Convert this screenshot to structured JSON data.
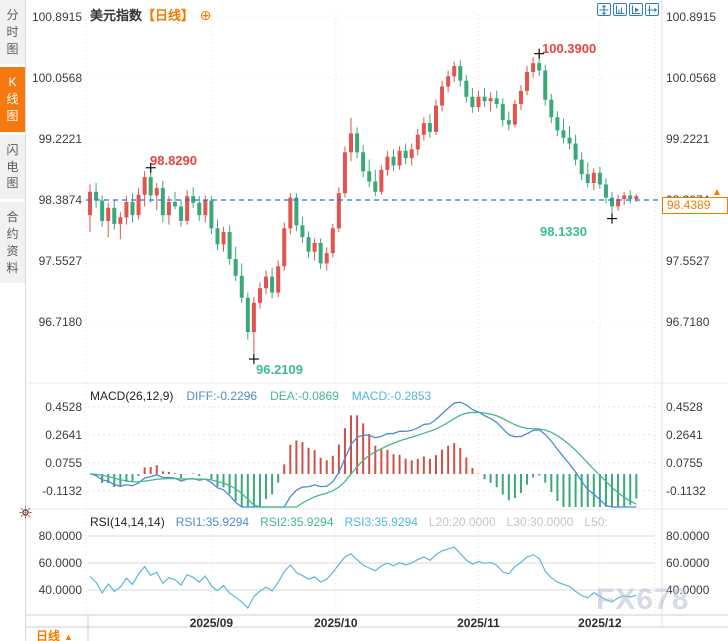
{
  "sidebar": {
    "tabs": [
      {
        "label": "分时图",
        "active": false
      },
      {
        "label": "K线图",
        "active": true
      },
      {
        "label": "闪电图",
        "active": false
      },
      {
        "label": "合约资料",
        "active": false
      }
    ]
  },
  "header": {
    "title": "美元指数",
    "period_tag": "【日线】",
    "add_icon": "⊕"
  },
  "toolbar": {
    "icons": [
      "pan-crosshair",
      "axis-zoom",
      "axis-play",
      "axis-shift"
    ]
  },
  "main_chart": {
    "y_axis_labels": [
      "100.8915",
      "100.0568",
      "99.2221",
      "98.3874",
      "97.5527",
      "96.7180"
    ],
    "annotations": {
      "high_aug": "98.8290",
      "peak_nov": "100.3900",
      "low_dec": "98.1330",
      "low_sep": "96.2109"
    },
    "current_price": "98.4389",
    "price_arrow": "▲"
  },
  "macd_panel": {
    "title": "MACD(26,12,9)",
    "diff_label": "DIFF:-0.2296",
    "dea_label": "DEA:-0.0869",
    "macd_label": "MACD:-0.2853",
    "y_labels": [
      "0.4528",
      "0.2641",
      "0.0755",
      "-0.1132"
    ]
  },
  "rsi_panel": {
    "title": "RSI(14,14,14)",
    "rsi1_label": "RSI1:35.9294",
    "rsi2_label": "RSI2:35.9294",
    "rsi3_label": "RSI3:35.9294",
    "l20_label": "L20:20.0000",
    "l30_label": "L30:30.0000",
    "l50_label": "L50:",
    "y_labels": [
      "80.0000",
      "60.0000",
      "40.0000"
    ]
  },
  "x_axis": {
    "labels": [
      "2025/09",
      "2025/10",
      "2025/11",
      "2025/12"
    ]
  },
  "footer": {
    "period_button": "日线",
    "arrow": "▲"
  },
  "watermark": "FX678",
  "colors": {
    "up": "#e2544e",
    "down": "#3aa878",
    "accent_orange": "#f57b00",
    "prev_close_line": "#2478d8",
    "diff_line": "#4d8bd0",
    "dea_line": "#46b88a",
    "rsi_line": "#59b7d8",
    "annotation_red": "#e8433f",
    "annotation_green": "#3bbd94"
  },
  "chart_data": {
    "type": "candlestick",
    "title": "美元指数 日线 (US Dollar Index, Daily)",
    "y_range": [
      96.718,
      100.8915
    ],
    "y_gridline_values": [
      100.8915,
      100.0568,
      99.2221,
      98.3874,
      97.5527,
      96.718
    ],
    "x_tick_labels": [
      "2025/09",
      "2025/10",
      "2025/11",
      "2025/12"
    ],
    "x_tick_indices": [
      20,
      40.5,
      64,
      84
    ],
    "prev_close": 98.3874,
    "last_price": 98.4389,
    "legend_convention": "red=up, green=down",
    "candles_ohlc": [
      [
        98.18,
        98.6,
        97.95,
        98.5
      ],
      [
        98.5,
        98.62,
        98.28,
        98.38
      ],
      [
        98.38,
        98.45,
        98.02,
        98.1
      ],
      [
        98.1,
        98.35,
        97.88,
        98.28
      ],
      [
        98.28,
        98.38,
        97.98,
        98.06
      ],
      [
        98.06,
        98.22,
        97.85,
        98.15
      ],
      [
        98.15,
        98.45,
        98.05,
        98.36
      ],
      [
        98.36,
        98.48,
        98.08,
        98.18
      ],
      [
        98.18,
        98.55,
        98.12,
        98.46
      ],
      [
        98.46,
        98.78,
        98.3,
        98.7
      ],
      [
        98.7,
        98.829,
        98.35,
        98.45
      ],
      [
        98.45,
        98.62,
        98.25,
        98.55
      ],
      [
        98.55,
        98.65,
        98.08,
        98.18
      ],
      [
        98.18,
        98.44,
        98.05,
        98.36
      ],
      [
        98.36,
        98.5,
        98.26,
        98.3
      ],
      [
        98.3,
        98.38,
        98.02,
        98.1
      ],
      [
        98.1,
        98.52,
        98.05,
        98.44
      ],
      [
        98.44,
        98.56,
        98.28,
        98.35
      ],
      [
        98.35,
        98.44,
        98.1,
        98.18
      ],
      [
        98.18,
        98.45,
        98.08,
        98.38
      ],
      [
        98.38,
        98.44,
        97.92,
        98.0
      ],
      [
        98.0,
        98.12,
        97.7,
        97.78
      ],
      [
        97.78,
        98.02,
        97.68,
        97.95
      ],
      [
        97.95,
        98.04,
        97.5,
        97.58
      ],
      [
        97.58,
        97.75,
        97.28,
        97.35
      ],
      [
        97.35,
        97.52,
        96.98,
        97.05
      ],
      [
        97.05,
        97.12,
        96.48,
        96.58
      ],
      [
        96.58,
        97.06,
        96.2109,
        96.98
      ],
      [
        96.98,
        97.26,
        96.9,
        97.18
      ],
      [
        97.18,
        97.42,
        97.1,
        97.34
      ],
      [
        97.34,
        97.46,
        97.04,
        97.12
      ],
      [
        97.12,
        97.56,
        97.06,
        97.48
      ],
      [
        97.48,
        98.08,
        97.42,
        98.0
      ],
      [
        98.0,
        98.48,
        97.92,
        98.42
      ],
      [
        98.42,
        98.48,
        97.96,
        98.04
      ],
      [
        98.04,
        98.16,
        97.8,
        97.88
      ],
      [
        97.88,
        97.96,
        97.6,
        97.68
      ],
      [
        97.68,
        97.86,
        97.56,
        97.8
      ],
      [
        97.8,
        97.86,
        97.44,
        97.52
      ],
      [
        97.52,
        97.74,
        97.42,
        97.66
      ],
      [
        97.66,
        98.06,
        97.6,
        98.0
      ],
      [
        98.0,
        98.56,
        97.95,
        98.48
      ],
      [
        98.48,
        99.12,
        98.42,
        99.04
      ],
      [
        99.04,
        99.51,
        98.92,
        99.3
      ],
      [
        99.3,
        99.38,
        98.96,
        99.04
      ],
      [
        99.04,
        99.14,
        98.7,
        98.78
      ],
      [
        98.78,
        98.94,
        98.56,
        98.64
      ],
      [
        98.64,
        98.8,
        98.44,
        98.5
      ],
      [
        98.5,
        98.86,
        98.46,
        98.8
      ],
      [
        98.8,
        99.06,
        98.72,
        98.98
      ],
      [
        98.98,
        99.08,
        98.78,
        98.86
      ],
      [
        98.86,
        99.12,
        98.8,
        99.06
      ],
      [
        99.06,
        99.16,
        98.88,
        98.96
      ],
      [
        98.96,
        99.16,
        98.86,
        99.08
      ],
      [
        99.08,
        99.36,
        99.0,
        99.28
      ],
      [
        99.28,
        99.52,
        99.2,
        99.44
      ],
      [
        99.44,
        99.56,
        99.24,
        99.32
      ],
      [
        99.32,
        99.76,
        99.28,
        99.68
      ],
      [
        99.68,
        100.02,
        99.6,
        99.94
      ],
      [
        99.94,
        100.16,
        99.86,
        100.08
      ],
      [
        100.08,
        100.28,
        100.0,
        100.22
      ],
      [
        100.22,
        100.3,
        99.94,
        100.02
      ],
      [
        100.02,
        100.1,
        99.72,
        99.8
      ],
      [
        99.8,
        99.92,
        99.58,
        99.66
      ],
      [
        99.66,
        99.88,
        99.6,
        99.8
      ],
      [
        99.8,
        99.92,
        99.66,
        99.74
      ],
      [
        99.74,
        99.86,
        99.6,
        99.78
      ],
      [
        99.78,
        99.88,
        99.64,
        99.7
      ],
      [
        99.7,
        99.78,
        99.4,
        99.48
      ],
      [
        99.48,
        99.6,
        99.34,
        99.42
      ],
      [
        99.42,
        99.76,
        99.38,
        99.7
      ],
      [
        99.7,
        99.96,
        99.62,
        99.88
      ],
      [
        99.88,
        100.22,
        99.82,
        100.14
      ],
      [
        100.14,
        100.34,
        100.06,
        100.26
      ],
      [
        100.26,
        100.39,
        100.08,
        100.16
      ],
      [
        100.16,
        100.24,
        99.68,
        99.76
      ],
      [
        99.76,
        99.84,
        99.44,
        99.52
      ],
      [
        99.52,
        99.6,
        99.26,
        99.34
      ],
      [
        99.34,
        99.5,
        99.16,
        99.24
      ],
      [
        99.24,
        99.4,
        99.08,
        99.16
      ],
      [
        99.16,
        99.28,
        98.86,
        98.94
      ],
      [
        98.94,
        99.04,
        98.66,
        98.74
      ],
      [
        98.74,
        98.9,
        98.56,
        98.62
      ],
      [
        98.62,
        98.82,
        98.52,
        98.76
      ],
      [
        98.76,
        98.84,
        98.54,
        98.6
      ],
      [
        98.6,
        98.68,
        98.34,
        98.42
      ],
      [
        98.42,
        98.5,
        98.133,
        98.3
      ],
      [
        98.3,
        98.46,
        98.24,
        98.4
      ],
      [
        98.4,
        98.5,
        98.32,
        98.45
      ],
      [
        98.45,
        98.52,
        98.34,
        98.4
      ],
      [
        98.4,
        98.47,
        98.36,
        98.4389
      ]
    ],
    "markers": [
      {
        "index": 10,
        "price": 98.829
      },
      {
        "index": 27,
        "price": 96.2109
      },
      {
        "index": 74,
        "price": 100.39
      },
      {
        "index": 86,
        "price": 98.133
      }
    ],
    "indicators": {
      "macd": {
        "params": [
          26,
          12,
          9
        ],
        "diff": -0.2296,
        "dea": -0.0869,
        "macd": -0.2853,
        "y_gridline_values": [
          0.4528,
          0.2641,
          0.0755,
          -0.1132
        ]
      },
      "rsi": {
        "params": [
          14,
          14,
          14
        ],
        "rsi1": 35.9294,
        "rsi2": 35.9294,
        "rsi3": 35.9294,
        "l20": 20.0,
        "l30": 30.0,
        "y_gridline_values": [
          80,
          60,
          40
        ]
      }
    }
  }
}
